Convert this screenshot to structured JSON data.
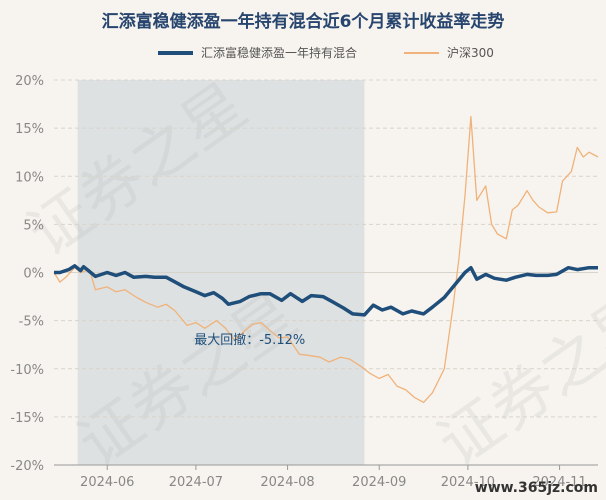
{
  "title": "汇添富稳健添盈一年持有混合近6个月累计收益率走势",
  "legend": [
    {
      "name": "汇添富稳健添盈一年持有混合",
      "color": "#1f4e7a"
    },
    {
      "name": "沪深300",
      "color": "#f0b27a"
    }
  ],
  "watermark": [
    "证券之星",
    "证券之星",
    "证券之星"
  ],
  "footer_text": "www.365jz.com",
  "annotation": "最大回撤：-5.12%",
  "chart_data": {
    "type": "line",
    "title": "汇添富稳健添盈一年持有混合近6个月累计收益率走势",
    "ylim": [
      -20,
      20
    ],
    "yticks": [
      20,
      15,
      10,
      5,
      0,
      -5,
      -10,
      -15,
      -20
    ],
    "ytick_labels": [
      "20%",
      "15%",
      "10%",
      "5%",
      "0%",
      "-5%",
      "-10%",
      "-15%",
      "-20%"
    ],
    "xlim": [
      "2024-05-14",
      "2024-11-14"
    ],
    "xticks": [
      "2024-06-01",
      "2024-07-01",
      "2024-08-01",
      "2024-09-01",
      "2024-10-01",
      "2024-11-01"
    ],
    "xtick_labels": [
      "2024-06",
      "2024-07",
      "2024-08",
      "2024-09",
      "2024-10",
      "2024-11"
    ],
    "grid": true,
    "legend_position": "top",
    "drawdown": {
      "start": "2024-05-22",
      "end": "2024-08-27",
      "value": -5.12,
      "label": "最大回撤：-5.12%"
    },
    "series": [
      {
        "name": "汇添富稳健添盈一年持有混合",
        "color": "#1f4e7a",
        "points": [
          [
            "2024-05-14",
            0.0
          ],
          [
            "2024-05-16",
            0.0
          ],
          [
            "2024-05-19",
            0.3
          ],
          [
            "2024-05-21",
            0.7
          ],
          [
            "2024-05-23",
            0.2
          ],
          [
            "2024-05-24",
            0.6
          ],
          [
            "2024-05-26",
            0.1
          ],
          [
            "2024-05-28",
            -0.4
          ],
          [
            "2024-06-01",
            0.0
          ],
          [
            "2024-06-04",
            -0.3
          ],
          [
            "2024-06-07",
            0.0
          ],
          [
            "2024-06-10",
            -0.5
          ],
          [
            "2024-06-14",
            -0.4
          ],
          [
            "2024-06-17",
            -0.5
          ],
          [
            "2024-06-21",
            -0.5
          ],
          [
            "2024-06-24",
            -1.0
          ],
          [
            "2024-06-27",
            -1.5
          ],
          [
            "2024-07-01",
            -2.0
          ],
          [
            "2024-07-04",
            -2.4
          ],
          [
            "2024-07-07",
            -2.1
          ],
          [
            "2024-07-10",
            -2.7
          ],
          [
            "2024-07-12",
            -3.3
          ],
          [
            "2024-07-16",
            -3.0
          ],
          [
            "2024-07-19",
            -2.5
          ],
          [
            "2024-07-23",
            -2.2
          ],
          [
            "2024-07-26",
            -2.2
          ],
          [
            "2024-07-30",
            -2.9
          ],
          [
            "2024-08-02",
            -2.2
          ],
          [
            "2024-08-06",
            -3.0
          ],
          [
            "2024-08-09",
            -2.4
          ],
          [
            "2024-08-13",
            -2.5
          ],
          [
            "2024-08-16",
            -3.0
          ],
          [
            "2024-08-20",
            -3.7
          ],
          [
            "2024-08-23",
            -4.3
          ],
          [
            "2024-08-27",
            -4.4
          ],
          [
            "2024-08-30",
            -3.4
          ],
          [
            "2024-09-02",
            -3.9
          ],
          [
            "2024-09-05",
            -3.6
          ],
          [
            "2024-09-09",
            -4.3
          ],
          [
            "2024-09-12",
            -4.0
          ],
          [
            "2024-09-16",
            -4.3
          ],
          [
            "2024-09-19",
            -3.6
          ],
          [
            "2024-09-23",
            -2.6
          ],
          [
            "2024-09-26",
            -1.5
          ],
          [
            "2024-09-30",
            0.0
          ],
          [
            "2024-10-02",
            0.5
          ],
          [
            "2024-10-04",
            -0.7
          ],
          [
            "2024-10-07",
            -0.2
          ],
          [
            "2024-10-10",
            -0.6
          ],
          [
            "2024-10-14",
            -0.8
          ],
          [
            "2024-10-17",
            -0.5
          ],
          [
            "2024-10-21",
            -0.2
          ],
          [
            "2024-10-24",
            -0.3
          ],
          [
            "2024-10-28",
            -0.3
          ],
          [
            "2024-10-31",
            -0.2
          ],
          [
            "2024-11-04",
            0.5
          ],
          [
            "2024-11-07",
            0.3
          ],
          [
            "2024-11-11",
            0.5
          ],
          [
            "2024-11-14",
            0.5
          ]
        ]
      },
      {
        "name": "沪深300",
        "color": "#f0b27a",
        "points": [
          [
            "2024-05-14",
            0.0
          ],
          [
            "2024-05-16",
            -1.0
          ],
          [
            "2024-05-18",
            -0.5
          ],
          [
            "2024-05-21",
            0.5
          ],
          [
            "2024-05-23",
            0.0
          ],
          [
            "2024-05-26",
            0.3
          ],
          [
            "2024-05-28",
            -1.8
          ],
          [
            "2024-06-01",
            -1.5
          ],
          [
            "2024-06-04",
            -2.0
          ],
          [
            "2024-06-07",
            -1.8
          ],
          [
            "2024-06-11",
            -2.6
          ],
          [
            "2024-06-14",
            -3.1
          ],
          [
            "2024-06-18",
            -3.6
          ],
          [
            "2024-06-21",
            -3.3
          ],
          [
            "2024-06-24",
            -4.0
          ],
          [
            "2024-06-28",
            -5.5
          ],
          [
            "2024-07-01",
            -5.2
          ],
          [
            "2024-07-04",
            -5.8
          ],
          [
            "2024-07-08",
            -5.0
          ],
          [
            "2024-07-11",
            -5.8
          ],
          [
            "2024-07-14",
            -7.0
          ],
          [
            "2024-07-17",
            -6.2
          ],
          [
            "2024-07-20",
            -5.4
          ],
          [
            "2024-07-23",
            -5.2
          ],
          [
            "2024-07-26",
            -6.0
          ],
          [
            "2024-07-29",
            -6.8
          ],
          [
            "2024-08-01",
            -6.7
          ],
          [
            "2024-08-05",
            -8.5
          ],
          [
            "2024-08-08",
            -8.6
          ],
          [
            "2024-08-12",
            -8.8
          ],
          [
            "2024-08-15",
            -9.3
          ],
          [
            "2024-08-19",
            -8.8
          ],
          [
            "2024-08-22",
            -9.0
          ],
          [
            "2024-08-26",
            -9.8
          ],
          [
            "2024-08-29",
            -10.5
          ],
          [
            "2024-09-01",
            -11.0
          ],
          [
            "2024-09-04",
            -10.6
          ],
          [
            "2024-09-07",
            -11.8
          ],
          [
            "2024-09-10",
            -12.2
          ],
          [
            "2024-09-13",
            -13.0
          ],
          [
            "2024-09-16",
            -13.5
          ],
          [
            "2024-09-19",
            -12.5
          ],
          [
            "2024-09-23",
            -10.0
          ],
          [
            "2024-09-26",
            -3.5
          ],
          [
            "2024-09-28",
            1.5
          ],
          [
            "2024-09-30",
            8.0
          ],
          [
            "2024-10-02",
            16.2
          ],
          [
            "2024-10-04",
            7.5
          ],
          [
            "2024-10-07",
            9.0
          ],
          [
            "2024-10-09",
            5.0
          ],
          [
            "2024-10-11",
            4.0
          ],
          [
            "2024-10-14",
            3.5
          ],
          [
            "2024-10-16",
            6.5
          ],
          [
            "2024-10-18",
            7.0
          ],
          [
            "2024-10-21",
            8.5
          ],
          [
            "2024-10-23",
            7.5
          ],
          [
            "2024-10-25",
            6.8
          ],
          [
            "2024-10-28",
            6.2
          ],
          [
            "2024-10-31",
            6.3
          ],
          [
            "2024-11-02",
            9.5
          ],
          [
            "2024-11-05",
            10.5
          ],
          [
            "2024-11-07",
            13.0
          ],
          [
            "2024-11-09",
            12.0
          ],
          [
            "2024-11-11",
            12.5
          ],
          [
            "2024-11-14",
            12.0
          ]
        ]
      }
    ]
  }
}
